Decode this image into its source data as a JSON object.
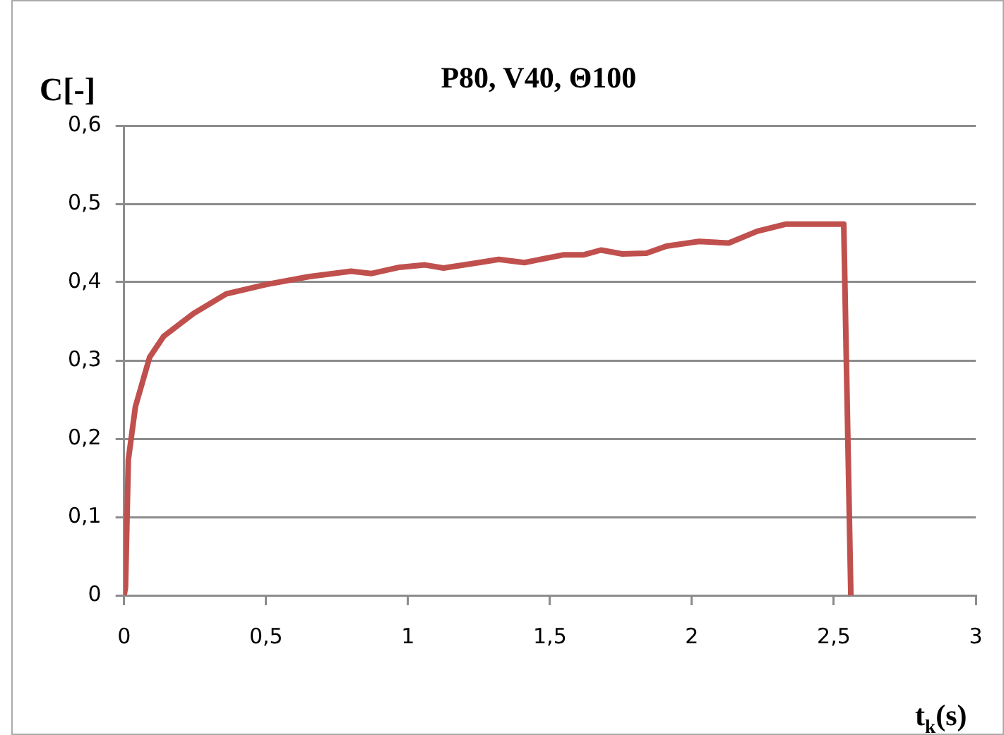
{
  "chart_data": {
    "type": "line",
    "title": "P80, V40, Θ100",
    "xlabel": "t$_{k}$(s)",
    "ylabel": "C[-]",
    "x": [
      0,
      0.005,
      0.015,
      0.04,
      0.09,
      0.14,
      0.245,
      0.36,
      0.5,
      0.65,
      0.8,
      0.87,
      0.97,
      1.06,
      1.125,
      1.25,
      1.32,
      1.41,
      1.55,
      1.62,
      1.68,
      1.755,
      1.84,
      1.91,
      2.025,
      2.13,
      2.23,
      2.33,
      2.535,
      2.56
    ],
    "series": [
      {
        "color": "#c0504d",
        "values": [
          0,
          0.01,
          0.173,
          0.241,
          0.304,
          0.331,
          0.36,
          0.385,
          0.397,
          0.407,
          0.414,
          0.411,
          0.419,
          0.422,
          0.418,
          0.425,
          0.429,
          0.425,
          0.435,
          0.435,
          0.441,
          0.436,
          0.437,
          0.446,
          0.452,
          0.45,
          0.465,
          0.474,
          0.474,
          0
        ]
      }
    ],
    "xlim": [
      0,
      3
    ],
    "xticks": [
      0,
      {
        "value": 0.5,
        "label": "0,5"
      },
      1,
      {
        "value": 1.5,
        "label": "1,5"
      },
      2,
      {
        "value": 2.5,
        "label": "2,5"
      },
      3
    ],
    "ylim": [
      0,
      0.6
    ],
    "yticks": [
      0,
      {
        "value": 0.1,
        "label": "0,1"
      },
      {
        "value": 0.2,
        "label": "0,2"
      },
      {
        "value": 0.3,
        "label": "0,3"
      },
      {
        "value": 0.4,
        "label": "0,4"
      },
      {
        "value": 0.5,
        "label": "0,5"
      },
      {
        "value": 0.6,
        "label": "0,6"
      }
    ],
    "grid": "y",
    "marker": "none",
    "line_style": "solid",
    "legend": false
  }
}
